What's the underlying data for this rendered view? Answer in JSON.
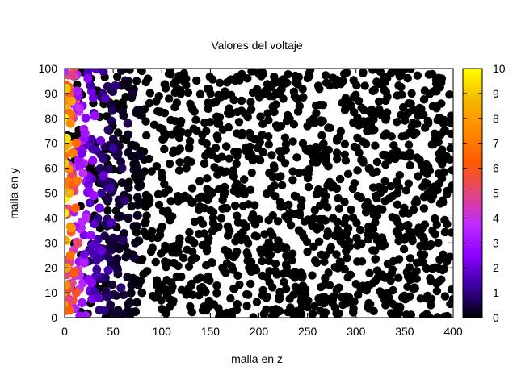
{
  "chart_data": {
    "type": "scatter",
    "title": "Valores del voltaje",
    "xlabel": "malla en z",
    "ylabel": "malla en y",
    "xlim": [
      0,
      400
    ],
    "ylim": [
      0,
      100
    ],
    "xticks": [
      "0",
      "50",
      "100",
      "150",
      "200",
      "250",
      "300",
      "350",
      "400"
    ],
    "yticks": [
      "0",
      "10",
      "20",
      "30",
      "40",
      "50",
      "60",
      "70",
      "80",
      "90",
      "100"
    ],
    "colorbar": {
      "range": [
        0,
        10
      ],
      "ticks": [
        "0",
        "1",
        "2",
        "3",
        "4",
        "5",
        "6",
        "7",
        "8",
        "9",
        "10"
      ],
      "palette": [
        "#000000",
        "#3a00a0",
        "#8a00ff",
        "#c02cff",
        "#e3447a",
        "#ff5a00",
        "#ff8a00",
        "#f5b800",
        "#ffff00"
      ]
    },
    "marker": "filled-circle",
    "grid": false,
    "points": [
      {
        "x": 0,
        "y": 5,
        "v": 7.6
      },
      {
        "x": 2,
        "y": 20,
        "v": 8.0
      },
      {
        "x": 0,
        "y": 42,
        "v": 9.6
      },
      {
        "x": 1,
        "y": 48,
        "v": 9.8
      },
      {
        "x": 0,
        "y": 62,
        "v": 9.0
      },
      {
        "x": 2,
        "y": 72,
        "v": 9.4
      },
      {
        "x": 0,
        "y": 80,
        "v": 9.7
      },
      {
        "x": 2,
        "y": 92,
        "v": 9.0
      },
      {
        "x": 0,
        "y": 99,
        "v": 3.5
      },
      {
        "x": 5,
        "y": 3,
        "v": 6.4
      },
      {
        "x": 6,
        "y": 25,
        "v": 6.8
      },
      {
        "x": 7,
        "y": 36,
        "v": 7.8
      },
      {
        "x": 5,
        "y": 50,
        "v": 8.5
      },
      {
        "x": 8,
        "y": 66,
        "v": 7.2
      },
      {
        "x": 6,
        "y": 78,
        "v": 7.5
      },
      {
        "x": 7,
        "y": 87,
        "v": 8.2
      },
      {
        "x": 9,
        "y": 97,
        "v": 4.8
      },
      {
        "x": 12,
        "y": 10,
        "v": 5.8
      },
      {
        "x": 10,
        "y": 18,
        "v": 6.2
      },
      {
        "x": 14,
        "y": 30,
        "v": 5.2
      },
      {
        "x": 11,
        "y": 44,
        "v": 6.4
      },
      {
        "x": 13,
        "y": 55,
        "v": 7.0
      },
      {
        "x": 12,
        "y": 70,
        "v": 6.6
      },
      {
        "x": 15,
        "y": 84,
        "v": 3.8
      },
      {
        "x": 13,
        "y": 91,
        "v": 3.2
      },
      {
        "x": 18,
        "y": 6,
        "v": 3.0
      },
      {
        "x": 20,
        "y": 22,
        "v": 3.4
      },
      {
        "x": 22,
        "y": 40,
        "v": 3.6
      },
      {
        "x": 19,
        "y": 58,
        "v": 3.9
      },
      {
        "x": 21,
        "y": 74,
        "v": 3.1
      },
      {
        "x": 24,
        "y": 96,
        "v": 2.6
      },
      {
        "x": 28,
        "y": 14,
        "v": 2.6
      },
      {
        "x": 27,
        "y": 33,
        "v": 2.8
      },
      {
        "x": 30,
        "y": 49,
        "v": 3.0
      },
      {
        "x": 29,
        "y": 63,
        "v": 2.7
      },
      {
        "x": 31,
        "y": 81,
        "v": 2.9
      },
      {
        "x": 35,
        "y": 8,
        "v": 1.8
      },
      {
        "x": 38,
        "y": 27,
        "v": 2.0
      },
      {
        "x": 36,
        "y": 44,
        "v": 2.2
      },
      {
        "x": 40,
        "y": 57,
        "v": 1.9
      },
      {
        "x": 37,
        "y": 71,
        "v": 2.1
      },
      {
        "x": 42,
        "y": 88,
        "v": 1.6
      },
      {
        "x": 45,
        "y": 19,
        "v": 1.4
      },
      {
        "x": 48,
        "y": 38,
        "v": 1.5
      },
      {
        "x": 47,
        "y": 52,
        "v": 1.3
      },
      {
        "x": 50,
        "y": 68,
        "v": 1.2
      },
      {
        "x": 52,
        "y": 93,
        "v": 1.0
      },
      {
        "x": 58,
        "y": 12,
        "v": 0.9
      },
      {
        "x": 60,
        "y": 31,
        "v": 0.8
      },
      {
        "x": 62,
        "y": 47,
        "v": 0.9
      },
      {
        "x": 59,
        "y": 60,
        "v": 0.7
      },
      {
        "x": 65,
        "y": 78,
        "v": 0.6
      },
      {
        "x": 72,
        "y": 24,
        "v": 0.4
      },
      {
        "x": 75,
        "y": 41,
        "v": 0.3
      },
      {
        "x": 78,
        "y": 65,
        "v": 0.3
      },
      {
        "x": 70,
        "y": 90,
        "v": 0.4
      }
    ],
    "background_points_value": 0
  }
}
